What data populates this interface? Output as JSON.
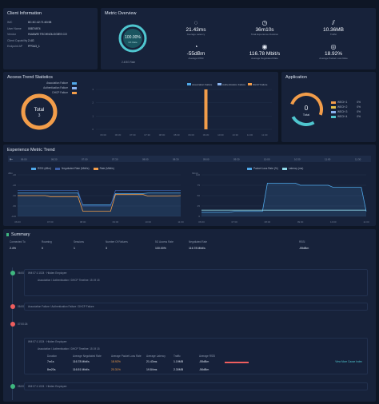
{
  "client_info": {
    "title": "Client Information",
    "rows": [
      {
        "label": "IMC",
        "value": "8C:3C:42:71:60:98"
      },
      {
        "label": "User Name",
        "value": "00874974"
      },
      {
        "label": "Vendor",
        "value": "HUAWEI TECHNOLOGIES CO"
      },
      {
        "label": "Client Capability",
        "value": "2.4G"
      },
      {
        "label": "Endpoint AP",
        "value": "PP0A3_1"
      }
    ]
  },
  "metric_overview": {
    "title": "Metric Overview",
    "rate_value": "100.00%",
    "rate_label": "UK Rate",
    "sub_label": "2.4/5G Rate",
    "metrics": [
      {
        "icon": "latency-icon",
        "value": "21.43ms",
        "label": "Average Latency"
      },
      {
        "icon": "clock-icon",
        "value": "36m10s",
        "label": "Total Experience Duration"
      },
      {
        "icon": "traffic-icon",
        "value": "10.36MB",
        "label": "Traffic"
      },
      {
        "icon": "signal-icon",
        "value": "-55dBm",
        "label": "Average RSSI"
      },
      {
        "icon": "speed-icon",
        "value": "116.78 Mbit/s",
        "label": "Average Negotiated Rate"
      },
      {
        "icon": "loss-icon",
        "value": "18.92%",
        "label": "Average Packet Loss Rate"
      }
    ],
    "accent": "#4fc6cf",
    "warn": "#ef5e5e"
  },
  "access_trend": {
    "title": "Access Trend Statistics",
    "total_label": "Total",
    "total_value": "3",
    "failures": [
      "Association Failure",
      "Authentication Failure",
      "DHCP Failure"
    ]
  },
  "application": {
    "title": "Application",
    "total_value": "0",
    "total_label": "Total",
    "items": [
      {
        "name": "WECH 1",
        "value": "0%"
      },
      {
        "name": "WECH 2",
        "value": "0%"
      },
      {
        "name": "WECH 3",
        "value": "0%"
      },
      {
        "name": "WECH 4",
        "value": "0%"
      }
    ]
  },
  "experience_trend": {
    "title": "Experience Metric Trend",
    "axis_times": [
      "06:00",
      "06:30",
      "07:00",
      "07:30",
      "08:00",
      "08:30",
      "09:00",
      "09:30",
      "10:00",
      "10:30",
      "11:00",
      "11:30"
    ],
    "left_unit": "dBm",
    "right_unit_left": "Mbit/s",
    "right_unit_r": "ms"
  },
  "summary": {
    "title": "Summary",
    "columns": [
      {
        "label": "Connected To",
        "value": "2.4%"
      },
      {
        "label": "Roaming",
        "value": "0"
      },
      {
        "label": "Sessions",
        "value": "1"
      },
      {
        "label": "Number Of Failures",
        "value": "3"
      },
      {
        "label": "5G Access Rate",
        "value": "100.00%"
      },
      {
        "label": "Negotiated Rate",
        "value": "116.78 Mbit/s"
      },
      {
        "label": "RSSI",
        "value": "-55dBm"
      }
    ]
  },
  "timeline": [
    {
      "time": "06:00:26",
      "color": "#3fb77f",
      "title": "Wifi 07:1:1024 · Hidden Employee",
      "desc": "Association / Authentication / DHCP Timeline: 15 19 15"
    },
    {
      "time": "06:00:01",
      "color": "#ef5e5e",
      "title": "Association Failure / Authentication Failure / DHCP Failure",
      "desc": ""
    },
    {
      "time": "07:00:26",
      "color": "#ef5e5e",
      "title": "Wifi 07:1:1024 · Hidden Employee",
      "desc": "Association / Authentication / DHCP Timeline: 15 19 15"
    },
    {
      "time": "08:00:30",
      "color": "#3fb77f",
      "title": "Wifi 07:1:1024 · Hidden Employee",
      "desc": ""
    }
  ],
  "detail": {
    "headers": [
      "Duration",
      "Average Negotiated Rate",
      "Average Packet Loss Rate",
      "Average Latency",
      "Traffic",
      "Average RSSI"
    ],
    "row1": [
      "7m1s",
      "116.78 Mbit/s",
      "18.92%",
      "21.43ms",
      "1.19MB",
      "-55dBm"
    ],
    "row2": [
      "8m20s",
      "116.51 Mbit/s",
      "20.31%",
      "19.84ms",
      "2.30MB",
      "-56dBm"
    ],
    "link": "View More Cause Index"
  },
  "chart_data": [
    {
      "type": "bar",
      "categories": [
        "06:00",
        "06:30",
        "07:00",
        "07:30",
        "08:00",
        "08:30",
        "09:00",
        "09:30",
        "10:00",
        "10:30",
        "11:00",
        "11:30"
      ],
      "series": [
        {
          "name": "Association Failure",
          "values": [
            0,
            0,
            0,
            0,
            0,
            0,
            0,
            0,
            0,
            0,
            0,
            0
          ]
        },
        {
          "name": "Authentication Failure",
          "values": [
            0,
            0,
            0,
            0,
            0,
            0,
            0,
            0,
            0,
            0,
            0,
            0
          ]
        },
        {
          "name": "DHCP Failure",
          "values": [
            0,
            0,
            0,
            0,
            0,
            0,
            0,
            3,
            0,
            0,
            0,
            0
          ]
        }
      ],
      "ylim": [
        0,
        3
      ]
    },
    {
      "type": "line",
      "x": [
        "06:00",
        "07:00",
        "08:00",
        "09:00",
        "10:00",
        "11:00"
      ],
      "series": [
        {
          "name": "RSSI (dBm)",
          "values": [
            -55,
            -55,
            -78,
            -56,
            -55,
            -55
          ]
        },
        {
          "name": "Negotiated Rate (Mbit/s)",
          "values": [
            -50,
            -50,
            -80,
            -50,
            -50,
            -50
          ]
        },
        {
          "name": "Rate (Mbit/s)",
          "values": [
            -60,
            -62,
            -90,
            -58,
            -61,
            -60
          ]
        }
      ],
      "ylabel": "dBm",
      "ylim": [
        -100,
        -20
      ]
    },
    {
      "type": "line",
      "x": [
        "06:00",
        "07:00",
        "08:00",
        "09:00",
        "10:00",
        "11:00"
      ],
      "series": [
        {
          "name": "Packet Loss Rate (%)",
          "values": [
            10,
            12,
            80,
            75,
            70,
            12
          ]
        },
        {
          "name": "Latency (ms)",
          "values": [
            15,
            15,
            15,
            15,
            15,
            15
          ]
        }
      ],
      "ylim": [
        0,
        100
      ]
    }
  ]
}
